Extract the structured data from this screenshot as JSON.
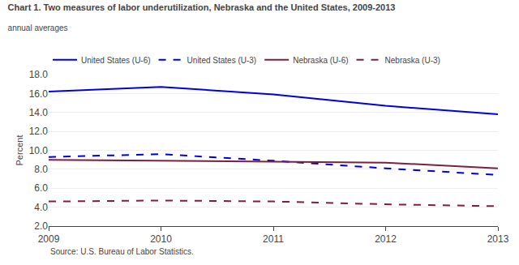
{
  "chart_data": {
    "type": "line",
    "title": "Chart 1. Two measures of labor underutilization, Nebraska and the United States, 2009-2013",
    "subtitle": "annual averages",
    "y_label": "Percent",
    "annotations": [
      "Source: U.S. Bureau of Labor Statistics."
    ],
    "x": [
      2009,
      2010,
      2011,
      2012,
      2013
    ],
    "series": [
      {
        "name": "United States (U-6)",
        "color": "#0000dd",
        "line_style": "solid",
        "values": [
          16.2,
          16.7,
          15.9,
          14.7,
          13.8
        ]
      },
      {
        "name": "United States (U-3)",
        "color": "#0000dd",
        "line_style": "dashed",
        "values": [
          9.3,
          9.6,
          8.9,
          8.1,
          7.4
        ]
      },
      {
        "name": "Nebraska (U-6)",
        "color": "#7b2040",
        "line_style": "solid",
        "values": [
          9.0,
          8.9,
          8.8,
          8.7,
          8.1
        ]
      },
      {
        "name": "Nebraska (U-3)",
        "color": "#7b2040",
        "line_style": "dashed",
        "values": [
          4.6,
          4.7,
          4.6,
          4.3,
          4.1
        ]
      }
    ],
    "xlim": [
      2009,
      2013
    ],
    "xticks": [
      2009,
      2010,
      2011,
      2012,
      2013
    ],
    "ylim": [
      2.0,
      18.0
    ],
    "yticks": [
      {
        "value": 2.0,
        "label": "2.0"
      },
      {
        "value": 4.0,
        "label": "4.0"
      },
      {
        "value": 6.0,
        "label": "6.0"
      },
      {
        "value": 8.0,
        "label": "8.0"
      },
      {
        "value": 10.0,
        "label": "10.0"
      },
      {
        "value": 12.0,
        "label": "12.0"
      },
      {
        "value": 14.0,
        "label": "14.0"
      },
      {
        "value": 16.0,
        "label": "16.0"
      },
      {
        "value": 18.0,
        "label": "18.0"
      }
    ],
    "grid": true,
    "legend": "top"
  }
}
